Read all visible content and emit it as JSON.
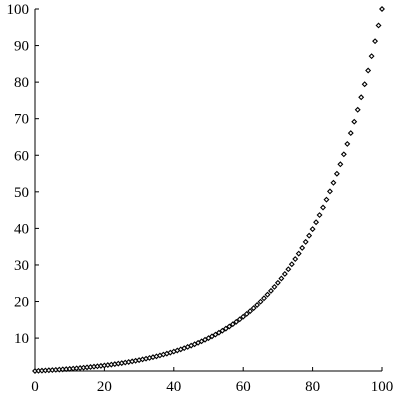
{
  "chart_data": {
    "type": "scatter",
    "title": "",
    "xlabel": "",
    "ylabel": "",
    "xlim": [
      0,
      100
    ],
    "ylim": [
      1,
      100
    ],
    "x_ticks": [
      0,
      20,
      40,
      60,
      80,
      100
    ],
    "y_ticks": [
      10,
      20,
      30,
      40,
      50,
      60,
      70,
      80,
      90,
      100
    ],
    "x_tick_labels": [
      "0",
      "20",
      "40",
      "60",
      "80",
      "100"
    ],
    "y_tick_labels": [
      "10",
      "20",
      "30",
      "40",
      "50",
      "60",
      "70",
      "80",
      "90",
      "100"
    ],
    "grid": false,
    "legend": false,
    "marker": "diamond",
    "marker_color": "#000000",
    "series": [
      {
        "x": [
          0,
          1,
          2,
          3,
          4,
          5,
          6,
          7,
          8,
          9,
          10,
          11,
          12,
          13,
          14,
          15,
          16,
          17,
          18,
          19,
          20,
          21,
          22,
          23,
          24,
          25,
          26,
          27,
          28,
          29,
          30,
          31,
          32,
          33,
          34,
          35,
          36,
          37,
          38,
          39,
          40,
          41,
          42,
          43,
          44,
          45,
          46,
          47,
          48,
          49,
          50,
          51,
          52,
          53,
          54,
          55,
          56,
          57,
          58,
          59,
          60,
          61,
          62,
          63,
          64,
          65,
          66,
          67,
          68,
          69,
          70,
          71,
          72,
          73,
          74,
          75,
          76,
          77,
          78,
          79,
          80,
          81,
          82,
          83,
          84,
          85,
          86,
          87,
          88,
          89,
          90,
          91,
          92,
          93,
          94,
          95,
          96,
          97,
          98,
          99,
          100
        ],
        "y": [
          1.0,
          1.05,
          1.1,
          1.15,
          1.2,
          1.26,
          1.32,
          1.38,
          1.45,
          1.51,
          1.58,
          1.66,
          1.74,
          1.82,
          1.91,
          2.0,
          2.09,
          2.19,
          2.29,
          2.4,
          2.51,
          2.63,
          2.75,
          2.88,
          3.02,
          3.16,
          3.31,
          3.47,
          3.63,
          3.8,
          3.98,
          4.17,
          4.37,
          4.57,
          4.79,
          5.01,
          5.25,
          5.5,
          5.75,
          6.03,
          6.31,
          6.61,
          6.92,
          7.24,
          7.59,
          7.94,
          8.32,
          8.71,
          9.12,
          9.55,
          10.0,
          10.47,
          10.96,
          11.48,
          12.02,
          12.59,
          13.18,
          13.8,
          14.45,
          15.14,
          15.85,
          16.6,
          17.38,
          18.2,
          19.05,
          19.95,
          20.89,
          21.88,
          22.91,
          23.99,
          25.12,
          26.3,
          27.54,
          28.84,
          30.2,
          31.62,
          33.11,
          34.67,
          36.31,
          38.02,
          39.81,
          41.69,
          43.65,
          45.71,
          47.86,
          50.12,
          52.48,
          54.95,
          57.54,
          60.26,
          63.1,
          66.07,
          69.18,
          72.44,
          75.86,
          79.43,
          83.18,
          87.1,
          91.2,
          95.5,
          100.0
        ]
      }
    ]
  }
}
